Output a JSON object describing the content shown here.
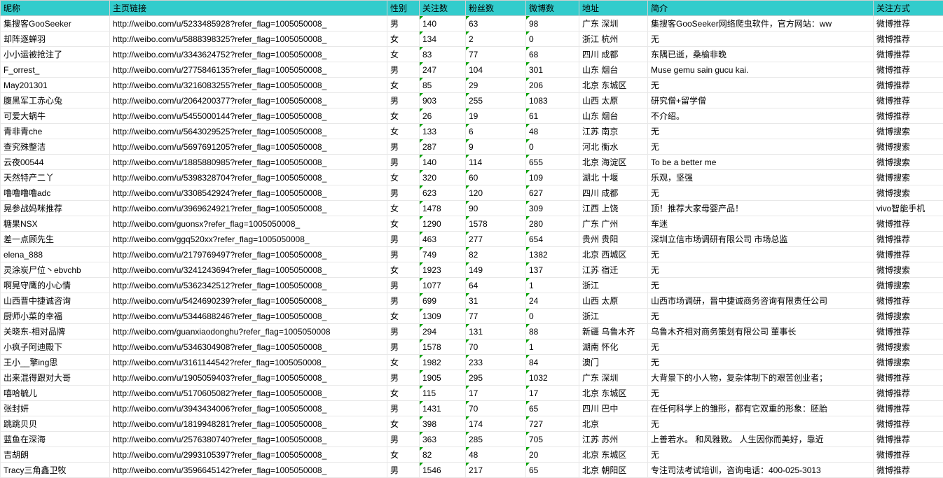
{
  "columns": [
    "昵称",
    "主页链接",
    "性别",
    "关注数",
    "粉丝数",
    "微博数",
    "地址",
    "简介",
    "关注方式"
  ],
  "colClasses": [
    "c0",
    "c1",
    "c2",
    "c3",
    "c4",
    "c5",
    "c6",
    "c7",
    "c8"
  ],
  "numericCols": [
    3,
    4,
    5
  ],
  "rows": [
    [
      "集搜客GooSeeker",
      "http://weibo.com/u/5233485928?refer_flag=1005050008_",
      "男",
      "140",
      "63",
      "98",
      "广东 深圳",
      "集搜客GooSeeker网络爬虫软件，官方网站：ww",
      "微博推荐"
    ],
    [
      "却阵逐蝉羽",
      "http://weibo.com/u/5888398325?refer_flag=1005050008_",
      "女",
      "134",
      "2",
      "0",
      "浙江 杭州",
      "无",
      "微博推荐"
    ],
    [
      "小小运被抢注了",
      "http://weibo.com/u/3343624752?refer_flag=1005050008_",
      "女",
      "83",
      "77",
      "68",
      "四川 成都",
      "东隅已逝，桑榆非晚",
      "微博推荐"
    ],
    [
      "F_orrest_",
      "http://weibo.com/u/2775846135?refer_flag=1005050008_",
      "男",
      "247",
      "104",
      "301",
      "山东 烟台",
      "Muse gemu sain gucu kai.",
      "微博推荐"
    ],
    [
      "May201301",
      "http://weibo.com/u/3216083255?refer_flag=1005050008_",
      "女",
      "85",
      "29",
      "206",
      "北京 东城区",
      "无",
      "微博推荐"
    ],
    [
      "腹黑军工赤心兔",
      "http://weibo.com/u/2064200377?refer_flag=1005050008_",
      "男",
      "903",
      "255",
      "1083",
      "山西 太原",
      "研究僧+留学僧",
      "微博推荐"
    ],
    [
      "可爱大蜗牛",
      "http://weibo.com/u/5455000144?refer_flag=1005050008_",
      "女",
      "26",
      "19",
      "61",
      "山东 烟台",
      "不介绍。",
      "微博推荐"
    ],
    [
      "青非青che",
      "http://weibo.com/u/5643029525?refer_flag=1005050008_",
      "女",
      "133",
      "6",
      "48",
      "江苏 南京",
      "无",
      "微博搜索"
    ],
    [
      "查究殊整洁",
      "http://weibo.com/u/5697691205?refer_flag=1005050008_",
      "男",
      "287",
      "9",
      "0",
      "河北 衡水",
      "无",
      "微博搜索"
    ],
    [
      "云夜00544",
      "http://weibo.com/u/1885880985?refer_flag=1005050008_",
      "男",
      "140",
      "114",
      "655",
      "北京 海淀区",
      "To be a better me",
      "微博搜索"
    ],
    [
      "天然特产二丫",
      "http://weibo.com/u/5398328704?refer_flag=1005050008_",
      "女",
      "320",
      "60",
      "109",
      "湖北 十堰",
      "乐观，坚强",
      "微博搜索"
    ],
    [
      "噜噜噜噜adc",
      "http://weibo.com/u/3308542924?refer_flag=1005050008_",
      "男",
      "623",
      "120",
      "627",
      "四川 成都",
      "无",
      "微博搜索"
    ],
    [
      "晃参战妈咪推荐",
      "http://weibo.com/u/3969624921?refer_flag=1005050008_",
      "女",
      "1478",
      "90",
      "309",
      "江西 上饶",
      "顶！推荐大家母婴产品！",
      "vivo智能手机"
    ],
    [
      "糖果NSX",
      "http://weibo.com/guonsx?refer_flag=1005050008_",
      "女",
      "1290",
      "1578",
      "280",
      "广东 广州",
      "车迷",
      "微博推荐"
    ],
    [
      "差一点顾先生",
      "http://weibo.com/ggq520xx?refer_flag=1005050008_",
      "男",
      "463",
      "277",
      "654",
      "贵州 贵阳",
      "深圳立信市场调研有限公司 市场总监",
      "微博推荐"
    ],
    [
      "elena_888",
      "http://weibo.com/u/2179769497?refer_flag=1005050008_",
      "男",
      "749",
      "82",
      "1382",
      "北京 西城区",
      "无",
      "微博推荐"
    ],
    [
      "灵涂炭尸位丶ebvchb",
      "http://weibo.com/u/3241243694?refer_flag=1005050008_",
      "女",
      "1923",
      "149",
      "137",
      "江苏 宿迁",
      "无",
      "微博搜索"
    ],
    [
      "啊晃守鹰的小心情",
      "http://weibo.com/u/5362342512?refer_flag=1005050008_",
      "男",
      "1077",
      "64",
      "1",
      "浙江",
      "无",
      "微博搜索"
    ],
    [
      "山西晋中捷诚咨询",
      "http://weibo.com/u/5424690239?refer_flag=1005050008_",
      "男",
      "699",
      "31",
      "24",
      "山西 太原",
      "山西市场调研，晋中捷诚商务咨询有限责任公司",
      "微博推荐"
    ],
    [
      "厨师小菜的幸福",
      "http://weibo.com/u/5344688246?refer_flag=1005050008_",
      "女",
      "1309",
      "77",
      "0",
      "浙江",
      "无",
      "微博搜索"
    ],
    [
      "关晓东-相对品牌",
      "http://weibo.com/guanxiaodonghu?refer_flag=1005050008",
      "男",
      "294",
      "131",
      "88",
      "新疆 乌鲁木齐",
      "乌鲁木齐相对商务策划有限公司 董事长",
      "微博推荐"
    ],
    [
      "小疯子阿迪殿下",
      "http://weibo.com/u/5346304908?refer_flag=1005050008_",
      "男",
      "1578",
      "70",
      "1",
      "湖南 怀化",
      "无",
      "微博搜索"
    ],
    [
      "王小__擎ing思",
      "http://weibo.com/u/3161144542?refer_flag=1005050008_",
      "女",
      "1982",
      "233",
      "84",
      "澳门",
      "无",
      "微博搜索"
    ],
    [
      "出来混得跟对大哥",
      "http://weibo.com/u/1905059403?refer_flag=1005050008_",
      "男",
      "1905",
      "295",
      "1032",
      "广东 深圳",
      "大背景下的小人物，复杂体制下的艰苦创业者；",
      "微博推荐"
    ],
    [
      "嘻哈毓儿",
      "http://weibo.com/u/5170605082?refer_flag=1005050008_",
      "女",
      "115",
      "17",
      "17",
      "北京 东城区",
      "无",
      "微博推荐"
    ],
    [
      "张封妍",
      "http://weibo.com/u/3943434006?refer_flag=1005050008_",
      "男",
      "1431",
      "70",
      "65",
      "四川 巴中",
      "在任何科学上的雏形，都有它双重的形象：胚胎",
      "微博推荐"
    ],
    [
      "跳跳贝贝",
      "http://weibo.com/u/1819948281?refer_flag=1005050008_",
      "女",
      "398",
      "174",
      "727",
      "北京",
      "无",
      "微博推荐"
    ],
    [
      "蓝鱼在深海",
      "http://weibo.com/u/2576380740?refer_flag=1005050008_",
      "男",
      "363",
      "285",
      "705",
      "江苏 苏州",
      "上善若水。 和风雅致。 人生因你而美好，靠近",
      "微博推荐"
    ],
    [
      "吉胡朗",
      "http://weibo.com/u/2993105397?refer_flag=1005050008_",
      "女",
      "82",
      "48",
      "20",
      "北京 东城区",
      "无",
      "微博推荐"
    ],
    [
      "Tracy三角鑫卫牧",
      "http://weibo.com/u/3596645142?refer_flag=1005050008_",
      "男",
      "1546",
      "217",
      "65",
      "北京 朝阳区",
      "专注司法考试培训，咨询电话：400-025-3013",
      "微博推荐"
    ]
  ]
}
